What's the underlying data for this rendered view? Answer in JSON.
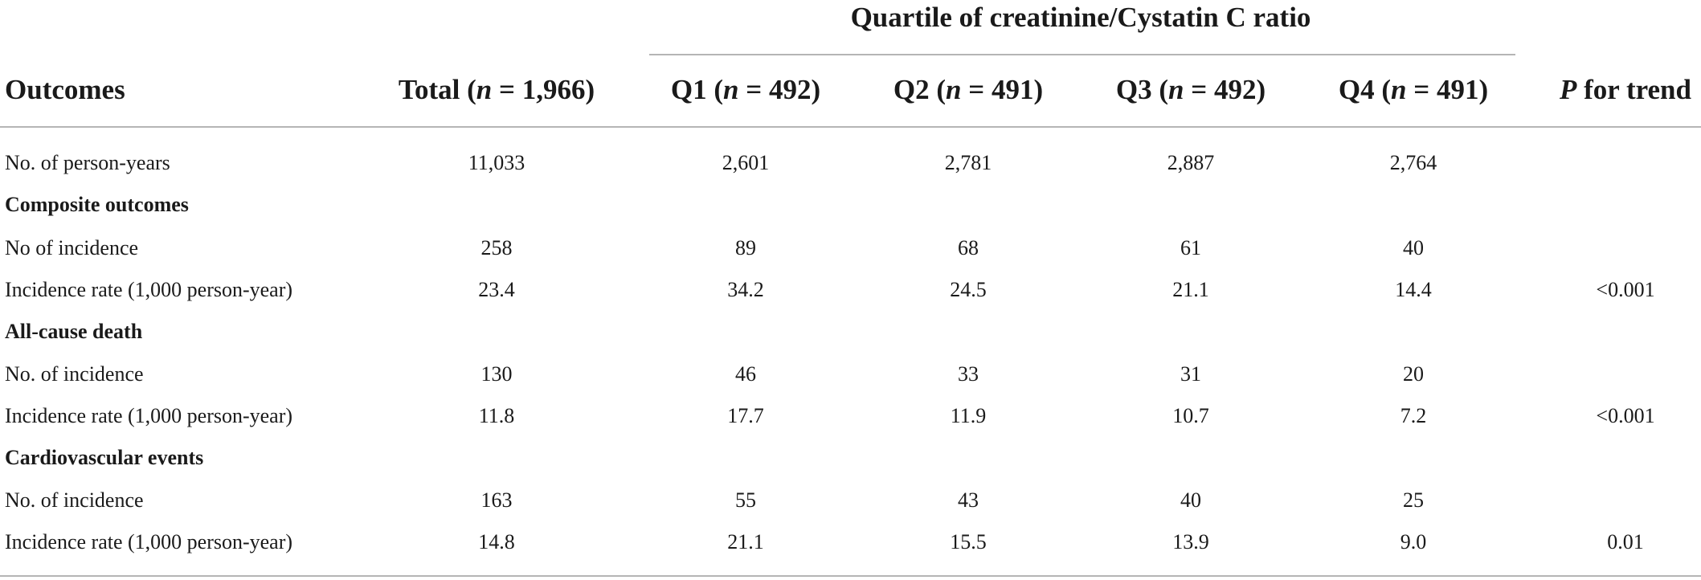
{
  "table": {
    "group_header": "Quartile of creatinine/Cystatin C ratio",
    "columns": {
      "outcomes": "Outcomes",
      "total": {
        "prefix": "Total (",
        "n": "n",
        "suffix": " = 1,966)"
      },
      "q1": {
        "prefix": "Q1 (",
        "n": "n",
        "suffix": " = 492)"
      },
      "q2": {
        "prefix": "Q2 (",
        "n": "n",
        "suffix": " = 491)"
      },
      "q3": {
        "prefix": "Q3 (",
        "n": "n",
        "suffix": " = 492)"
      },
      "q4": {
        "prefix": "Q4 (",
        "n": "n",
        "suffix": " = 491)"
      },
      "p": {
        "p": "P",
        "suffix": " for trend"
      }
    },
    "rows": {
      "person_years": {
        "label": "No. of person-years",
        "total": "11,033",
        "q1": "2,601",
        "q2": "2,781",
        "q3": "2,887",
        "q4": "2,764",
        "p": ""
      },
      "composite": {
        "title": "Composite outcomes"
      },
      "composite_incidence": {
        "label": "No of incidence",
        "total": "258",
        "q1": "89",
        "q2": "68",
        "q3": "61",
        "q4": "40",
        "p": ""
      },
      "composite_rate": {
        "label": "Incidence rate (1,000 person-year)",
        "total": "23.4",
        "q1": "34.2",
        "q2": "24.5",
        "q3": "21.1",
        "q4": "14.4",
        "p": "<0.001"
      },
      "death": {
        "title": "All-cause death"
      },
      "death_incidence": {
        "label": "No. of incidence",
        "total": "130",
        "q1": "46",
        "q2": "33",
        "q3": "31",
        "q4": "20",
        "p": ""
      },
      "death_rate": {
        "label": "Incidence rate (1,000 person-year)",
        "total": "11.8",
        "q1": "17.7",
        "q2": "11.9",
        "q3": "10.7",
        "q4": "7.2",
        "p": "<0.001"
      },
      "cv": {
        "title": "Cardiovascular events"
      },
      "cv_incidence": {
        "label": "No. of incidence",
        "total": "163",
        "q1": "55",
        "q2": "43",
        "q3": "40",
        "q4": "25",
        "p": ""
      },
      "cv_rate": {
        "label": "Incidence rate (1,000 person-year)",
        "total": "14.8",
        "q1": "21.1",
        "q2": "15.5",
        "q3": "13.9",
        "q4": "9.0",
        "p": "0.01"
      }
    }
  }
}
